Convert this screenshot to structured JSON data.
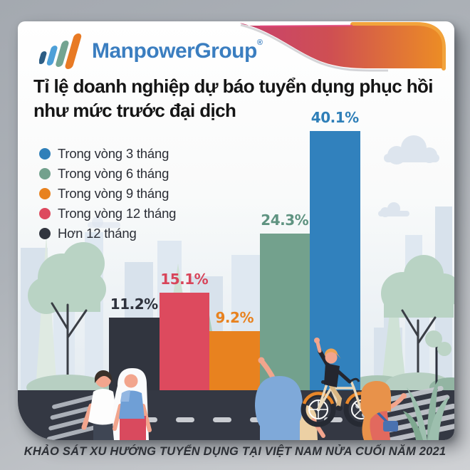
{
  "header": {
    "brand": "ManpowerGroup",
    "registered_mark": "®"
  },
  "title": {
    "line1": "Tỉ lệ doanh nghiệp dự báo tuyển dụng phục hồi",
    "line2": "như mức trước đại dịch"
  },
  "chart_data": {
    "type": "bar",
    "title": "Tỉ lệ doanh nghiệp dự báo tuyển dụng phục hồi như mức trước đại dịch",
    "value_suffix": "%",
    "ylim": [
      0,
      45
    ],
    "grid": false,
    "legend_position": "upper-left",
    "categories": [
      "Hơn 12 tháng",
      "Trong vòng 12 tháng",
      "Trong vòng 9 tháng",
      "Trong vòng 6 tháng",
      "Trong vòng 3 tháng"
    ],
    "series": [
      {
        "category": "Hơn 12 tháng",
        "value": 11.2,
        "label": "11.2%",
        "color": "#31353f",
        "label_color": "#2e323c"
      },
      {
        "category": "Trong vòng 12 tháng",
        "value": 15.1,
        "label": "15.1%",
        "color": "#dd4a5e",
        "label_color": "#d8455a"
      },
      {
        "category": "Trong vòng 9 tháng",
        "value": 9.2,
        "label": "9.2%",
        "color": "#e8821f",
        "label_color": "#e8821f"
      },
      {
        "category": "Trong vòng 6 tháng",
        "value": 24.3,
        "label": "24.3%",
        "color": "#73a18d",
        "label_color": "#5f9381"
      },
      {
        "category": "Trong vòng 3 tháng",
        "value": 40.1,
        "label": "40.1%",
        "color": "#3181bd",
        "label_color": "#2f7fb8"
      }
    ],
    "legend": [
      {
        "label": "Trong vòng 3 tháng",
        "color": "#2f80b9"
      },
      {
        "label": "Trong vòng 6 tháng",
        "color": "#73a18d"
      },
      {
        "label": "Trong vòng 9 tháng",
        "color": "#e8821f"
      },
      {
        "label": "Trong vòng 12 tháng",
        "color": "#dd4a5e"
      },
      {
        "label": "Hơn 12 tháng",
        "color": "#31353f"
      }
    ]
  },
  "footer": {
    "caption": "KHẢO SÁT XU HƯỚNG TUYỂN DỤNG TẠI VIỆT NAM NỬA CUỐI NĂM 2021"
  }
}
